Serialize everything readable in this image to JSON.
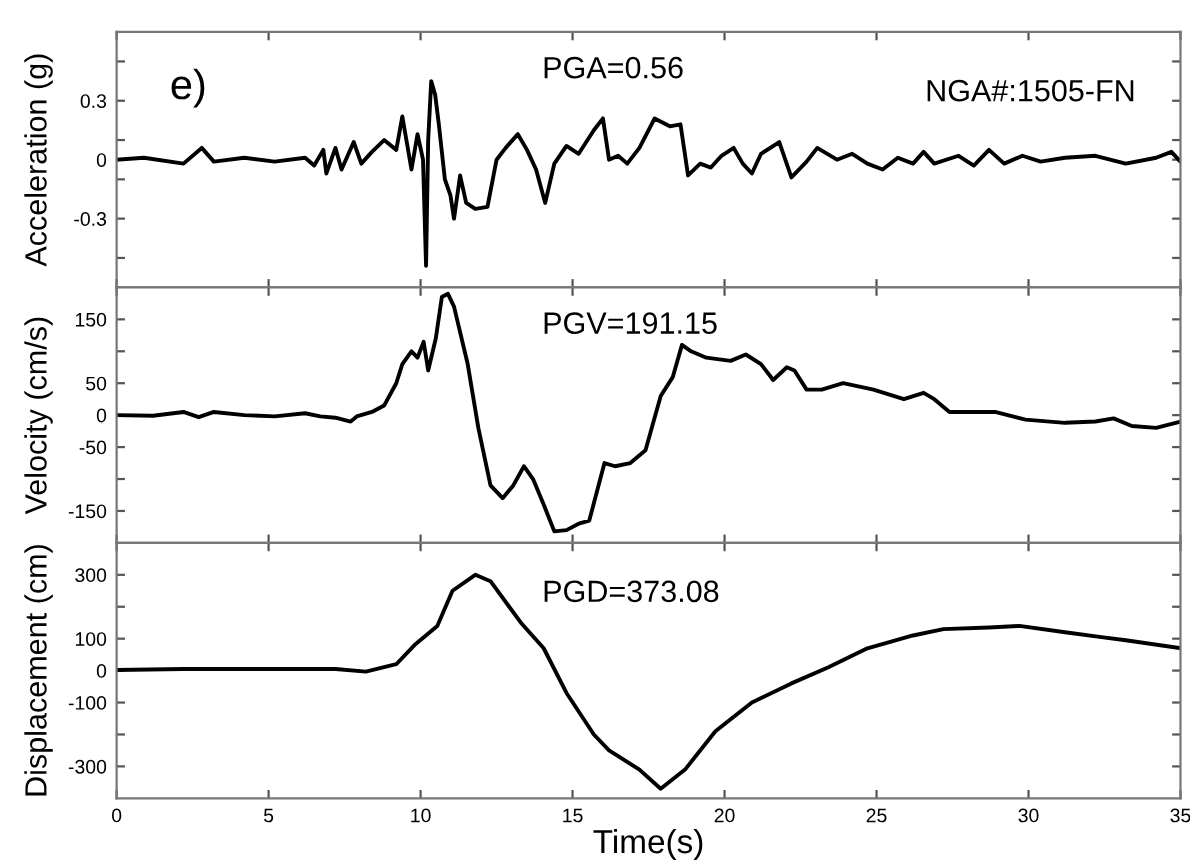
{
  "chart_data": [
    {
      "type": "line",
      "ylabel": "Acceleration (g)",
      "xlim": [
        0,
        35
      ],
      "xticks": [
        0,
        5,
        10,
        15,
        20,
        25,
        30,
        35
      ],
      "ylim": [
        -0.65,
        0.65
      ],
      "yticks": [
        {
          "value": -0.5,
          "label": null
        },
        -0.3,
        {
          "value": -0.1,
          "label": null
        },
        0,
        {
          "value": 0.1,
          "label": null
        },
        0.3,
        {
          "value": 0.5,
          "label": null
        }
      ],
      "tick_labels": "y",
      "grid": false,
      "legend": false,
      "marker": "none",
      "line_style": "solid",
      "annotations": [
        "e)",
        "PGA=0.56",
        "NGA#:1505-FN"
      ],
      "series": [
        {
          "color": "#000000",
          "x": [
            0,
            0.9,
            2.2,
            2.8,
            3.2,
            4.2,
            5.2,
            6.2,
            6.5,
            6.8,
            6.9,
            7.2,
            7.4,
            7.8,
            8.05,
            8.4,
            8.8,
            9.2,
            9.4,
            9.7,
            9.9,
            10.08,
            10.18,
            10.25,
            10.35,
            10.48,
            10.6,
            10.8,
            10.98,
            11.1,
            11.3,
            11.5,
            11.8,
            12.2,
            12.5,
            12.8,
            13.2,
            13.5,
            13.8,
            14.1,
            14.4,
            14.8,
            15.2,
            15.7,
            16.0,
            16.2,
            16.5,
            16.8,
            17.2,
            17.7,
            18.2,
            18.55,
            18.8,
            19.2,
            19.55,
            19.9,
            20.3,
            20.6,
            20.9,
            21.2,
            21.8,
            22.2,
            22.7,
            23.05,
            23.7,
            24.2,
            24.7,
            25.2,
            25.7,
            26.2,
            26.55,
            26.9,
            27.7,
            28.2,
            28.7,
            29.2,
            29.8,
            30.4,
            31.2,
            32.2,
            33.2,
            34.2,
            34.7,
            35
          ],
          "values": [
            0,
            0.01,
            -0.02,
            0.06,
            -0.01,
            0.01,
            -0.01,
            0.01,
            -0.03,
            0.05,
            -0.07,
            0.06,
            -0.05,
            0.09,
            -0.02,
            0.04,
            0.1,
            0.05,
            0.22,
            -0.05,
            0.13,
            0.0,
            -0.54,
            0.1,
            0.4,
            0.33,
            0.18,
            -0.1,
            -0.18,
            -0.3,
            -0.08,
            -0.22,
            -0.25,
            -0.24,
            0.0,
            0.06,
            0.13,
            0.05,
            -0.05,
            -0.22,
            -0.02,
            0.07,
            0.03,
            0.15,
            0.21,
            0.0,
            0.02,
            -0.02,
            0.06,
            0.21,
            0.17,
            0.18,
            -0.08,
            -0.02,
            -0.04,
            0.02,
            0.06,
            -0.02,
            -0.07,
            0.03,
            0.09,
            -0.09,
            -0.01,
            0.06,
            0.0,
            0.03,
            -0.02,
            -0.05,
            0.01,
            -0.02,
            0.04,
            -0.02,
            0.02,
            -0.03,
            0.05,
            -0.02,
            0.02,
            -0.01,
            0.01,
            0.02,
            -0.02,
            0.01,
            0.04,
            -0.01
          ]
        }
      ]
    },
    {
      "type": "line",
      "ylabel": "Velocity (cm/s)",
      "xlim": [
        0,
        35
      ],
      "xticks": [
        0,
        5,
        10,
        15,
        20,
        25,
        30,
        35
      ],
      "ylim": [
        -200,
        200
      ],
      "yticks": [
        -150,
        {
          "value": -100,
          "label": null
        },
        -50,
        0,
        50,
        {
          "value": 100,
          "label": null
        },
        150
      ],
      "tick_labels": "y",
      "grid": false,
      "legend": false,
      "marker": "none",
      "line_style": "solid",
      "annotations": [
        "PGV=191.15"
      ],
      "series": [
        {
          "color": "#000000",
          "x": [
            0,
            1.2,
            2.2,
            2.7,
            3.2,
            4.2,
            5.2,
            6.2,
            6.7,
            7.2,
            7.7,
            7.9,
            8.4,
            8.8,
            9.2,
            9.4,
            9.7,
            9.9,
            10.1,
            10.25,
            10.5,
            10.7,
            10.9,
            11.1,
            11.55,
            11.9,
            12.3,
            12.7,
            13.05,
            13.4,
            13.7,
            14.05,
            14.4,
            14.8,
            15.2,
            15.55,
            16.05,
            16.4,
            16.9,
            17.4,
            17.9,
            18.3,
            18.6,
            18.9,
            19.4,
            20.2,
            20.7,
            21.2,
            21.6,
            22.05,
            22.3,
            22.7,
            23.2,
            23.9,
            24.9,
            25.9,
            26.55,
            26.9,
            27.4,
            28.2,
            28.9,
            29.9,
            31.2,
            32.2,
            32.8,
            33.4,
            34.2,
            35
          ],
          "values": [
            0,
            -1,
            5,
            -3,
            5,
            0,
            -2,
            3,
            -2,
            -4,
            -10,
            -2,
            5,
            15,
            50,
            80,
            100,
            90,
            115,
            70,
            120,
            185,
            190,
            170,
            80,
            -20,
            -110,
            -130,
            -110,
            -80,
            -100,
            -140,
            -182,
            -180,
            -170,
            -165,
            -75,
            -80,
            -75,
            -55,
            30,
            60,
            110,
            100,
            90,
            85,
            95,
            80,
            55,
            75,
            70,
            40,
            40,
            50,
            40,
            25,
            35,
            25,
            5,
            5,
            5,
            -7,
            -12,
            -10,
            -5,
            -17,
            -20,
            -10
          ]
        }
      ]
    },
    {
      "type": "line",
      "xlabel": "Time(s)",
      "ylabel": "Displacement (cm)",
      "xlim": [
        0,
        35
      ],
      "xticks": [
        0,
        5,
        10,
        15,
        20,
        25,
        30,
        35
      ],
      "ylim": [
        -400,
        400
      ],
      "yticks": [
        -300,
        {
          "value": -200,
          "label": null
        },
        -100,
        0,
        100,
        {
          "value": 200,
          "label": null
        },
        300
      ],
      "grid": false,
      "legend": false,
      "marker": "none",
      "line_style": "solid",
      "annotations": [
        "PGD=373.08"
      ],
      "series": [
        {
          "color": "#000000",
          "x": [
            0,
            2.2,
            6.2,
            7.2,
            8.2,
            9.2,
            9.8,
            10.55,
            11.05,
            11.8,
            12.3,
            13.3,
            14.05,
            14.8,
            15.7,
            16.2,
            17.2,
            17.9,
            18.7,
            19.7,
            20.9,
            22.2,
            23.4,
            24.7,
            26.2,
            27.2,
            28.7,
            29.7,
            31.2,
            32.4,
            33.2,
            35
          ],
          "values": [
            2,
            5,
            5,
            5,
            -3,
            20,
            80,
            140,
            250,
            300,
            280,
            150,
            70,
            -70,
            -200,
            -250,
            -310,
            -370,
            -310,
            -190,
            -100,
            -40,
            10,
            70,
            110,
            130,
            135,
            140,
            120,
            105,
            95,
            70
          ]
        }
      ]
    }
  ]
}
